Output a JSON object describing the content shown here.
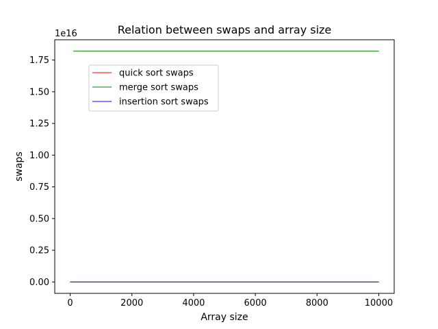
{
  "chart_data": {
    "type": "line",
    "title": "Relation between swaps and array size",
    "xlabel": "Array size",
    "ylabel": "swaps",
    "y_offset_label": "1e16",
    "xlim": [
      -500,
      10500
    ],
    "ylim": [
      -0.09,
      1.91
    ],
    "y_scale_note": "values in units of 1e16",
    "xticks": [
      0,
      2000,
      4000,
      6000,
      8000,
      10000
    ],
    "xtick_labels": [
      "0",
      "2000",
      "4000",
      "6000",
      "8000",
      "10000"
    ],
    "yticks": [
      0,
      0.25,
      0.5,
      0.75,
      1.0,
      1.25,
      1.5,
      1.75
    ],
    "ytick_labels": [
      "0.00",
      "0.25",
      "0.50",
      "0.75",
      "1.00",
      "1.25",
      "1.50",
      "1.75"
    ],
    "grid": false,
    "legend_position": "upper-left",
    "series": [
      {
        "name": "quick sort swaps",
        "color": "#ff0000",
        "x": [
          0,
          10000
        ],
        "y": [
          0,
          0
        ]
      },
      {
        "name": "merge sort swaps",
        "color": "#008000",
        "x": [
          100,
          10000
        ],
        "y": [
          1.82,
          1.82
        ]
      },
      {
        "name": "insertion sort swaps",
        "color": "#0000ff",
        "x": [
          0,
          10000
        ],
        "y": [
          0,
          0
        ]
      }
    ]
  }
}
